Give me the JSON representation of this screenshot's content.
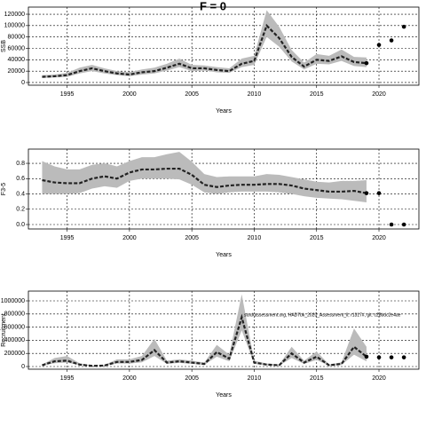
{
  "chart_data": [
    {
      "type": "line",
      "title": "F = 0",
      "xlabel": "Years",
      "ylabel": "SSB",
      "x": [
        1993,
        1994,
        1995,
        1996,
        1997,
        1998,
        1999,
        2000,
        2001,
        2002,
        2003,
        2004,
        2005,
        2006,
        2007,
        2008,
        2009,
        2010,
        2011,
        2012,
        2013,
        2014,
        2015,
        2016,
        2017,
        2018,
        2019
      ],
      "series": [
        {
          "color": "#222222",
          "values": [
            10000,
            11000,
            13000,
            20000,
            25000,
            20000,
            16000,
            14000,
            18000,
            20000,
            26000,
            33000,
            25000,
            25000,
            22000,
            20000,
            33000,
            38000,
            100000,
            78000,
            45000,
            28000,
            40000,
            38000,
            46000,
            36000,
            34000
          ]
        }
      ],
      "band": {
        "color": "#bbbbbb",
        "lower": [
          8000,
          9000,
          10000,
          16000,
          20000,
          16000,
          13000,
          11000,
          14000,
          16000,
          21000,
          27000,
          20000,
          21000,
          18000,
          17000,
          27000,
          31000,
          80000,
          63000,
          37000,
          23000,
          33000,
          32000,
          38000,
          29000,
          27000
        ],
        "upper": [
          13000,
          14000,
          17000,
          26000,
          31000,
          25000,
          20000,
          18000,
          23000,
          26000,
          33000,
          42000,
          31000,
          30000,
          27000,
          25000,
          42000,
          47000,
          127000,
          98000,
          57000,
          35000,
          50000,
          47000,
          58000,
          45000,
          44000
        ]
      },
      "projection": {
        "color": "#000000",
        "x": [
          2019,
          2020,
          2021,
          2022
        ],
        "values": [
          34000,
          66000,
          74000,
          98000
        ]
      },
      "xlim": [
        1991.9,
        2023.2
      ],
      "xticks": [
        1995,
        2000,
        2005,
        2010,
        2015,
        2020
      ],
      "ylim": [
        -4700,
        132500
      ],
      "yticks": [
        0,
        20000,
        40000,
        60000,
        80000,
        100000,
        120000
      ],
      "grid": true
    },
    {
      "type": "line",
      "xlabel": "Years",
      "ylabel": "F3-5",
      "x": [
        1993,
        1994,
        1995,
        1996,
        1997,
        1998,
        1999,
        2000,
        2001,
        2002,
        2003,
        2004,
        2005,
        2006,
        2007,
        2008,
        2009,
        2010,
        2011,
        2012,
        2013,
        2014,
        2015,
        2016,
        2017,
        2018,
        2019
      ],
      "series": [
        {
          "color": "#222222",
          "values": [
            0.58,
            0.55,
            0.54,
            0.54,
            0.6,
            0.63,
            0.6,
            0.68,
            0.72,
            0.72,
            0.73,
            0.73,
            0.65,
            0.52,
            0.49,
            0.51,
            0.52,
            0.52,
            0.53,
            0.53,
            0.51,
            0.47,
            0.45,
            0.43,
            0.43,
            0.44,
            0.41
          ]
        }
      ],
      "band": {
        "color": "#bbbbbb",
        "lower": [
          0.4,
          0.4,
          0.4,
          0.41,
          0.47,
          0.5,
          0.48,
          0.57,
          0.6,
          0.6,
          0.6,
          0.59,
          0.52,
          0.42,
          0.4,
          0.42,
          0.43,
          0.43,
          0.43,
          0.42,
          0.4,
          0.37,
          0.35,
          0.34,
          0.33,
          0.31,
          0.29
        ],
        "upper": [
          0.83,
          0.76,
          0.72,
          0.72,
          0.78,
          0.8,
          0.76,
          0.83,
          0.88,
          0.88,
          0.92,
          0.95,
          0.82,
          0.66,
          0.62,
          0.63,
          0.63,
          0.63,
          0.66,
          0.65,
          0.62,
          0.59,
          0.56,
          0.55,
          0.57,
          0.57,
          0.58
        ]
      },
      "projection": {
        "color": "#000000",
        "x": [
          2019,
          2020,
          2021,
          2022
        ],
        "values": [
          0.41,
          0.41,
          0,
          0
        ]
      },
      "xlim": [
        1991.9,
        2023.2
      ],
      "xticks": [
        1995,
        2000,
        2005,
        2010,
        2015,
        2020
      ],
      "ylim": [
        -0.058,
        0.986
      ],
      "yticks": [
        {
          "value": 0,
          "label": "0.0"
        },
        0.2,
        0.4,
        0.6,
        0.8
      ],
      "grid": true
    },
    {
      "type": "line",
      "xlabel": "Years",
      "ylabel": "Recruitment",
      "annotation": "stockassessment.org, HAD7bk_2020_Assessment_ll, r1317#, git: c28bdc2e4ae",
      "x": [
        1993,
        1994,
        1995,
        1996,
        1997,
        1998,
        1999,
        2000,
        2001,
        2002,
        2003,
        2004,
        2005,
        2006,
        2007,
        2008,
        2009,
        2010,
        2011,
        2012,
        2013,
        2014,
        2015,
        2016,
        2017,
        2018,
        2019
      ],
      "series": [
        {
          "color": "#222222",
          "values": [
            20000,
            80000,
            90000,
            30000,
            10000,
            15000,
            70000,
            70000,
            100000,
            250000,
            60000,
            80000,
            60000,
            40000,
            220000,
            120000,
            750000,
            60000,
            30000,
            20000,
            200000,
            60000,
            150000,
            20000,
            40000,
            300000,
            150000
          ]
        }
      ],
      "band": {
        "color": "#bbbbbb",
        "lower": [
          15000,
          50000,
          60000,
          20000,
          7000,
          10000,
          45000,
          45000,
          65000,
          160000,
          40000,
          55000,
          40000,
          25000,
          150000,
          80000,
          550000,
          40000,
          20000,
          13000,
          130000,
          40000,
          100000,
          13000,
          25000,
          180000,
          80000
        ],
        "upper": [
          30000,
          130000,
          160000,
          50000,
          15000,
          25000,
          110000,
          110000,
          160000,
          420000,
          90000,
          110000,
          90000,
          60000,
          330000,
          180000,
          1100000,
          90000,
          45000,
          30000,
          300000,
          90000,
          230000,
          30000,
          65000,
          580000,
          300000
        ]
      },
      "projection": {
        "color": "#000000",
        "x": [
          2019,
          2020,
          2021,
          2022
        ],
        "values": [
          150000,
          140000,
          140000,
          140000
        ]
      },
      "xlim": [
        1991.9,
        2023.2
      ],
      "xticks": [
        1995,
        2000,
        2005,
        2010,
        2015,
        2020
      ],
      "ylim": [
        -40500,
        1148600
      ],
      "yticks": [
        0,
        200000,
        400000,
        600000,
        800000,
        1000000
      ],
      "grid": true
    }
  ]
}
